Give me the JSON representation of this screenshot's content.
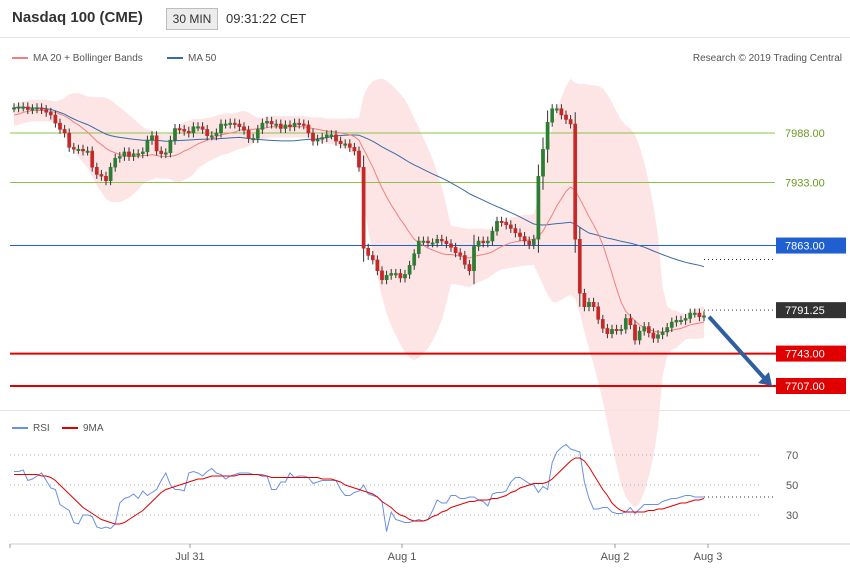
{
  "header": {
    "title": "Nasdaq 100 (CME)",
    "timeframe": "30 MIN",
    "time": "09:31:22 CET"
  },
  "colors": {
    "ma20": "#f08080",
    "band": "#fde0e0",
    "ma50": "#3a6aa8",
    "bull": "#2e7d32",
    "bear": "#c62828",
    "level_green": "#8bc34a",
    "level_blue": "#1f5fd1",
    "level_red": "#e00000",
    "rsi": "#6a8fe6",
    "rsi_ma": "#e00000"
  },
  "chart_data": [
    {
      "type": "candlestick",
      "legend": [
        "MA 20 + Bollinger Bands",
        "MA 50"
      ],
      "copyright": "Research © 2019 Trading Central",
      "ylim": [
        7672,
        8036
      ],
      "x_ticks": [
        "Jul 31",
        "Aug 1",
        "Aug 2",
        "Aug 3"
      ],
      "levels": [
        {
          "value": 7988.0,
          "label": "7988.00",
          "style": "green-line"
        },
        {
          "value": 7933.0,
          "label": "7933.00",
          "style": "green-line"
        },
        {
          "value": 7863.0,
          "label": "7863.00",
          "style": "blue-tag"
        },
        {
          "value": 7791.25,
          "label": "7791.25",
          "style": "price-tag"
        },
        {
          "value": 7743.0,
          "label": "7743.00",
          "style": "red-tag"
        },
        {
          "value": 7707.0,
          "label": "7707.00",
          "style": "red-tag"
        }
      ],
      "close": [
        8016,
        8017,
        8017,
        8014,
        8015,
        8016,
        8014,
        8011,
        8008,
        7999,
        7992,
        7988,
        7972,
        7970,
        7970,
        7968,
        7968,
        7950,
        7942,
        7940,
        7935,
        7950,
        7960,
        7962,
        7967,
        7962,
        7965,
        7965,
        7967,
        7980,
        7985,
        7968,
        7965,
        7966,
        7980,
        7993,
        7992,
        7990,
        7988,
        7995,
        7995,
        7992,
        7985,
        7985,
        7988,
        7998,
        7998,
        7999,
        7998,
        7995,
        7991,
        7982,
        7982,
        7992,
        7999,
        8001,
        7998,
        7998,
        7993,
        7997,
        7995,
        7999,
        7998,
        7997,
        7988,
        7979,
        7981,
        7983,
        7986,
        7986,
        7979,
        7976,
        7976,
        7972,
        7968,
        7950,
        7860,
        7852,
        7847,
        7835,
        7825,
        7830,
        7832,
        7832,
        7827,
        7831,
        7841,
        7854,
        7868,
        7868,
        7866,
        7866,
        7870,
        7868,
        7865,
        7861,
        7855,
        7852,
        7842,
        7835,
        7862,
        7868,
        7866,
        7868,
        7879,
        7890,
        7889,
        7886,
        7882,
        7877,
        7873,
        7868,
        7864,
        7870,
        7940,
        7970,
        8000,
        8015,
        8015,
        8008,
        8003,
        7998,
        7870,
        7810,
        7795,
        7800,
        7795,
        7781,
        7771,
        7765,
        7770,
        7769,
        7770,
        7782,
        7775,
        7758,
        7768,
        7773,
        7766,
        7760,
        7764,
        7767,
        7772,
        7778,
        7780,
        7780,
        7782,
        7788,
        7788,
        7784,
        7785
      ],
      "ma20": [
        8008,
        8009,
        8011,
        8012,
        8013,
        8013,
        8013,
        8013,
        8012,
        8011,
        8009,
        8007,
        8004,
        8000,
        7997,
        7993,
        7989,
        7984,
        7979,
        7975,
        7971,
        7968,
        7966,
        7964,
        7963,
        7962,
        7962,
        7962,
        7963,
        7963,
        7964,
        7963,
        7962,
        7962,
        7962,
        7963,
        7965,
        7968,
        7970,
        7973,
        7976,
        7978,
        7980,
        7982,
        7984,
        7986,
        7987,
        7988,
        7989,
        7991,
        7992,
        7992,
        7992,
        7993,
        7993,
        7994,
        7995,
        7995,
        7995,
        7995,
        7995,
        7995,
        7995,
        7995,
        7994,
        7993,
        7992,
        7991,
        7990,
        7990,
        7989,
        7988,
        7987,
        7986,
        7984,
        7980,
        7970,
        7960,
        7950,
        7938,
        7927,
        7917,
        7908,
        7900,
        7892,
        7885,
        7877,
        7870,
        7866,
        7863,
        7860,
        7858,
        7856,
        7854,
        7853,
        7853,
        7852,
        7851,
        7850,
        7849,
        7851,
        7852,
        7853,
        7854,
        7856,
        7859,
        7862,
        7864,
        7866,
        7867,
        7868,
        7869,
        7869,
        7870,
        7873,
        7879,
        7888,
        7897,
        7907,
        7915,
        7923,
        7928,
        7924,
        7915,
        7905,
        7895,
        7886,
        7876,
        7864,
        7848,
        7832,
        7815,
        7800,
        7790,
        7785,
        7779,
        7775,
        7772,
        7770,
        7768,
        7767,
        7767,
        7768,
        7769,
        7770,
        7771,
        7773,
        7775,
        7776,
        7777,
        7778
      ]
    },
    {
      "type": "line",
      "legend": [
        "RSI",
        "9MA"
      ],
      "ylim": [
        15,
        85
      ],
      "y_ticks": [
        70,
        50,
        30
      ],
      "x_ticks": [
        "Jul 31",
        "Aug 1",
        "Aug 2",
        "Aug 3"
      ],
      "series": [
        {
          "name": "RSI",
          "values": [
            59,
            59,
            60,
            53,
            54,
            56,
            58,
            53,
            48,
            47,
            37,
            35,
            33,
            25,
            24,
            30,
            30,
            29,
            22,
            21,
            22,
            21,
            24,
            38,
            41,
            42,
            44,
            41,
            46,
            43,
            45,
            47,
            53,
            58,
            50,
            47,
            47,
            46,
            58,
            59,
            58,
            56,
            59,
            61,
            58,
            57,
            54,
            56,
            57,
            58,
            58,
            58,
            57,
            57,
            57,
            56,
            47,
            47,
            52,
            52,
            58,
            55,
            56,
            56,
            55,
            51,
            52,
            53,
            53,
            53,
            53,
            47,
            43,
            43,
            45,
            46,
            50,
            44,
            43,
            42,
            39,
            19,
            32,
            27,
            26,
            25,
            25,
            26,
            27,
            26,
            27,
            33,
            40,
            38,
            38,
            43,
            43,
            41,
            41,
            42,
            42,
            40,
            39,
            36,
            44,
            45,
            45,
            46,
            52,
            55,
            55,
            53,
            51,
            50,
            45,
            49,
            47,
            65,
            72,
            75,
            77,
            74,
            73,
            72,
            52,
            41,
            34,
            34,
            35,
            35,
            32,
            31,
            31,
            32,
            35,
            31,
            34,
            37,
            37,
            37,
            37,
            39,
            40,
            41,
            41,
            42,
            43,
            43,
            42,
            42,
            42
          ]
        },
        {
          "name": "9MA",
          "values": [
            57,
            57,
            57,
            57,
            57,
            57,
            56,
            56,
            55,
            53,
            50,
            47,
            44,
            41,
            38,
            35,
            33,
            31,
            29,
            27,
            26,
            25,
            24,
            24,
            25,
            27,
            29,
            31,
            33,
            36,
            39,
            42,
            45,
            47,
            48,
            49,
            50,
            51,
            52,
            53,
            54,
            54,
            55,
            56,
            56,
            56,
            56,
            56,
            56,
            57,
            57,
            57,
            57,
            57,
            56,
            56,
            55,
            55,
            55,
            55,
            55,
            55,
            55,
            55,
            55,
            55,
            55,
            54,
            54,
            54,
            53,
            52,
            50,
            49,
            48,
            47,
            46,
            45,
            44,
            42,
            39,
            37,
            35,
            32,
            30,
            29,
            27,
            26,
            26,
            26,
            27,
            29,
            30,
            32,
            33,
            35,
            36,
            37,
            38,
            39,
            39,
            40,
            40,
            40,
            41,
            41,
            42,
            43,
            45,
            46,
            48,
            49,
            50,
            51,
            51,
            51,
            52,
            54,
            57,
            60,
            63,
            66,
            68,
            68,
            66,
            62,
            57,
            52,
            47,
            43,
            38,
            35,
            33,
            32,
            32,
            32,
            32,
            32,
            33,
            33,
            34,
            34,
            35,
            36,
            37,
            38,
            38,
            39,
            40,
            40,
            41
          ]
        }
      ]
    }
  ]
}
